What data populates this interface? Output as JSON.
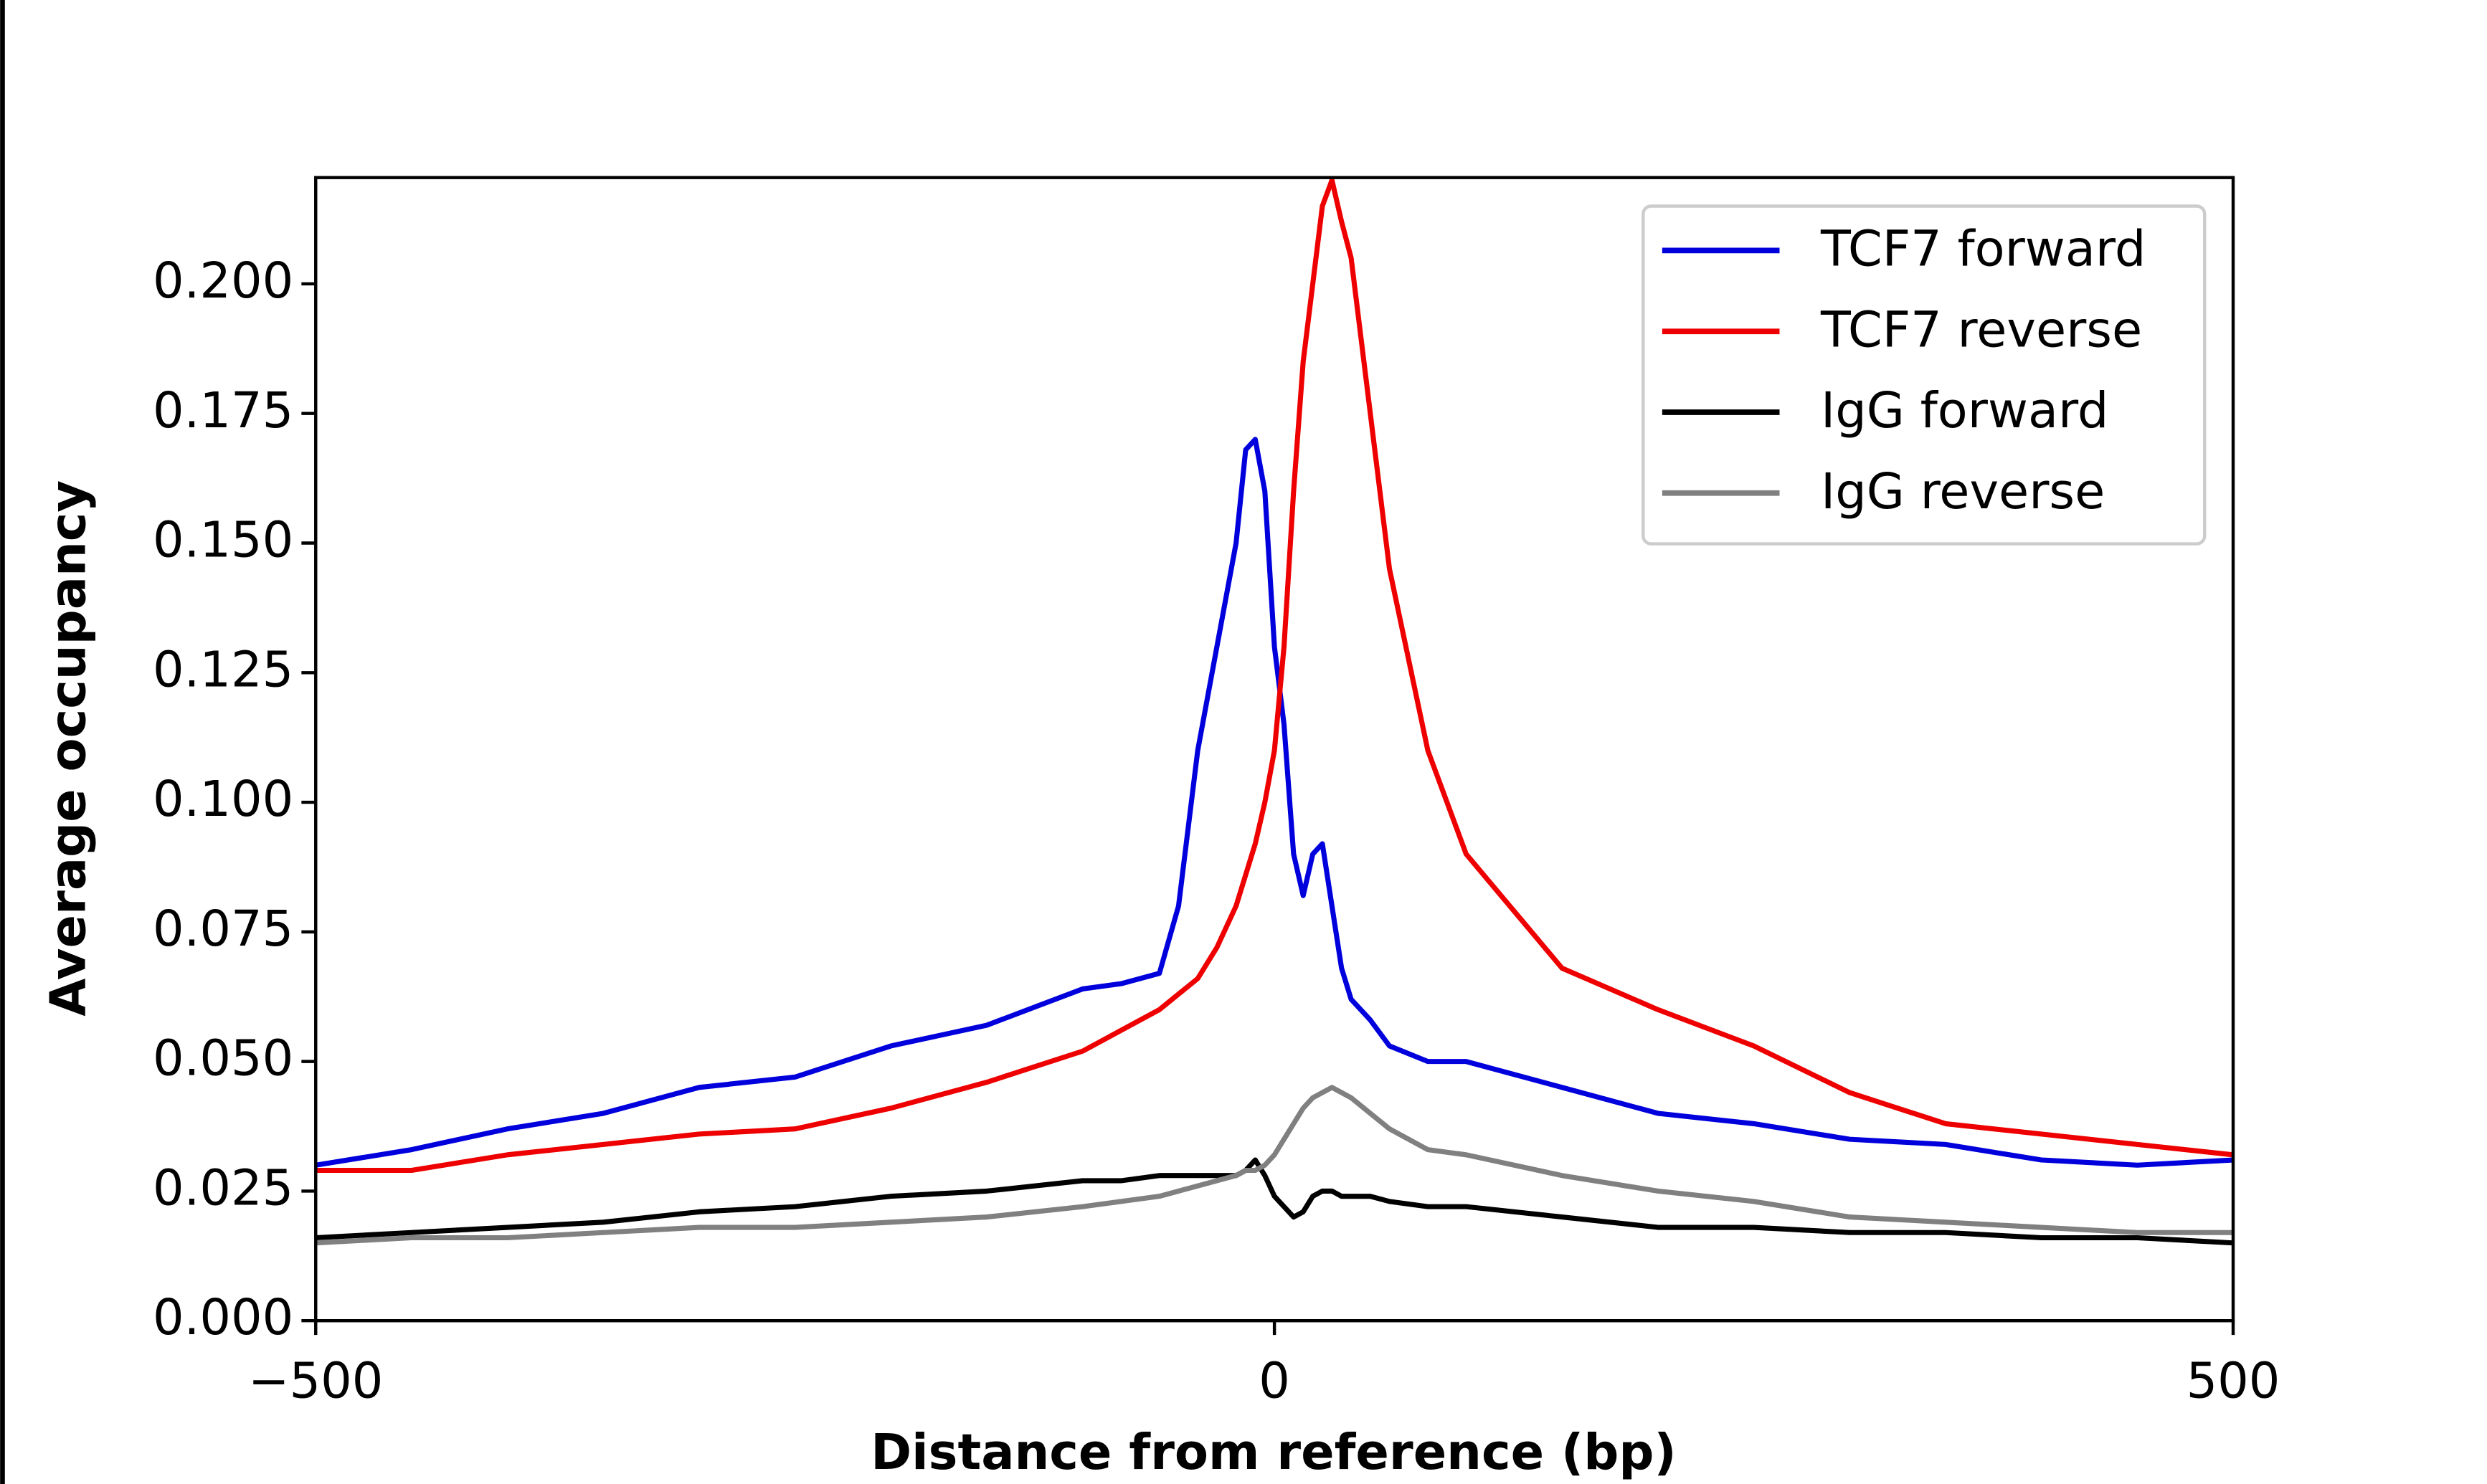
{
  "chart_data": {
    "type": "line",
    "xlabel": "Distance from reference (bp)",
    "ylabel": "Average occupancy",
    "x": [
      -500,
      -450,
      -400,
      -350,
      -300,
      -250,
      -200,
      -150,
      -100,
      -80,
      -60,
      -50,
      -40,
      -30,
      -20,
      -15,
      -10,
      -5,
      0,
      5,
      10,
      15,
      20,
      25,
      30,
      35,
      40,
      50,
      60,
      80,
      100,
      150,
      200,
      250,
      300,
      350,
      400,
      450,
      500
    ],
    "series": [
      {
        "name": "TCF7 forward",
        "color": "#0000dd",
        "values": [
          0.03,
          0.033,
          0.037,
          0.04,
          0.045,
          0.047,
          0.053,
          0.057,
          0.064,
          0.065,
          0.067,
          0.08,
          0.11,
          0.13,
          0.15,
          0.168,
          0.17,
          0.16,
          0.13,
          0.115,
          0.09,
          0.082,
          0.09,
          0.092,
          0.08,
          0.068,
          0.062,
          0.058,
          0.053,
          0.05,
          0.05,
          0.045,
          0.04,
          0.038,
          0.035,
          0.034,
          0.031,
          0.03,
          0.031
        ]
      },
      {
        "name": "TCF7 reverse",
        "color": "#ee0000",
        "values": [
          0.029,
          0.029,
          0.032,
          0.034,
          0.036,
          0.037,
          0.041,
          0.046,
          0.052,
          0.056,
          0.06,
          0.063,
          0.066,
          0.072,
          0.08,
          0.086,
          0.092,
          0.1,
          0.11,
          0.13,
          0.16,
          0.185,
          0.2,
          0.215,
          0.22,
          0.212,
          0.205,
          0.175,
          0.145,
          0.11,
          0.09,
          0.068,
          0.06,
          0.053,
          0.044,
          0.038,
          0.036,
          0.034,
          0.032
        ]
      },
      {
        "name": "IgG forward",
        "color": "#000000",
        "values": [
          0.016,
          0.017,
          0.018,
          0.019,
          0.021,
          0.022,
          0.024,
          0.025,
          0.027,
          0.027,
          0.028,
          0.028,
          0.028,
          0.028,
          0.028,
          0.029,
          0.031,
          0.028,
          0.024,
          0.022,
          0.02,
          0.021,
          0.024,
          0.025,
          0.025,
          0.024,
          0.024,
          0.024,
          0.023,
          0.022,
          0.022,
          0.02,
          0.018,
          0.018,
          0.017,
          0.017,
          0.016,
          0.016,
          0.015
        ]
      },
      {
        "name": "IgG reverse",
        "color": "#808080",
        "values": [
          0.015,
          0.016,
          0.016,
          0.017,
          0.018,
          0.018,
          0.019,
          0.02,
          0.022,
          0.023,
          0.024,
          0.025,
          0.026,
          0.027,
          0.028,
          0.029,
          0.029,
          0.03,
          0.032,
          0.035,
          0.038,
          0.041,
          0.043,
          0.044,
          0.045,
          0.044,
          0.043,
          0.04,
          0.037,
          0.033,
          0.032,
          0.028,
          0.025,
          0.023,
          0.02,
          0.019,
          0.018,
          0.017,
          0.017
        ]
      }
    ],
    "xlim": [
      -500,
      500
    ],
    "xticks": [
      {
        "value": -500,
        "label": "−500"
      },
      0,
      500
    ],
    "ylim": [
      0,
      0.2205
    ],
    "yticks": [
      {
        "value": 0,
        "label": "0.000"
      },
      {
        "value": 0.025,
        "label": "0.025"
      },
      {
        "value": 0.05,
        "label": "0.050"
      },
      {
        "value": 0.075,
        "label": "0.075"
      },
      {
        "value": 0.1,
        "label": "0.100"
      },
      {
        "value": 0.125,
        "label": "0.125"
      },
      {
        "value": 0.15,
        "label": "0.150"
      },
      {
        "value": 0.175,
        "label": "0.175"
      },
      {
        "value": 0.2,
        "label": "0.200"
      }
    ],
    "legend": "upper right"
  }
}
